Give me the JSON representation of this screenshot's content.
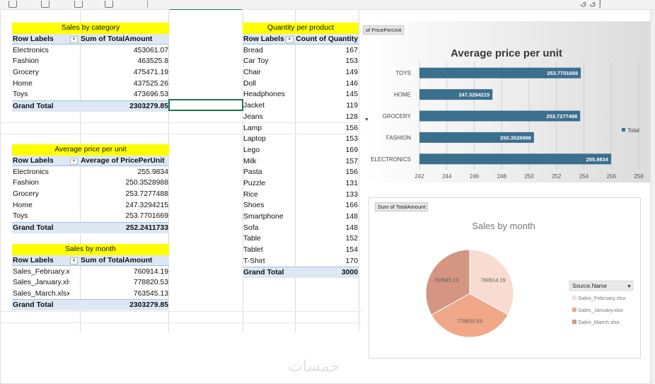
{
  "topbar": {
    "arabic_text": "إ ى ى"
  },
  "sales_by_category": {
    "title": "Sales by category",
    "col1": "Row Labels",
    "col2": "Sum of TotalAmount",
    "rows": [
      {
        "label": "Electronics",
        "value": "453061.07"
      },
      {
        "label": "Fashion",
        "value": "463525.8"
      },
      {
        "label": "Grocery",
        "value": "475471.19"
      },
      {
        "label": "Home",
        "value": "437525.26"
      },
      {
        "label": "Toys",
        "value": "473696.53"
      }
    ],
    "total_label": "Grand Total",
    "total_value": "2303279.85"
  },
  "avg_price": {
    "title": "Average price per unit",
    "col1": "Row Labels",
    "col2": "Average of PricePerUnit",
    "rows": [
      {
        "label": "Electronics",
        "value": "255.9834"
      },
      {
        "label": "Fashion",
        "value": "250.3528988"
      },
      {
        "label": "Grocery",
        "value": "253.7277488"
      },
      {
        "label": "Home",
        "value": "247.3294215"
      },
      {
        "label": "Toys",
        "value": "253.7701669"
      }
    ],
    "total_label": "Grand Total",
    "total_value": "252.2411733"
  },
  "sales_by_month": {
    "title": "Sales by month",
    "col1": "Row Labels",
    "col2": "Sum of TotalAmount",
    "rows": [
      {
        "label": "Sales_February.xlsx",
        "value": "760914.19"
      },
      {
        "label": "Sales_January.xlsx",
        "value": "778820.53"
      },
      {
        "label": "Sales_March.xlsx",
        "value": "763545.13"
      }
    ],
    "total_label": "Grand Total",
    "total_value": "2303279.85"
  },
  "qty_per_product": {
    "title": "Quantity per product",
    "col1": "Row Labels",
    "col2": "Count of Quantity",
    "rows": [
      {
        "label": "Bread",
        "value": "167"
      },
      {
        "label": "Car Toy",
        "value": "153"
      },
      {
        "label": "Chair",
        "value": "149"
      },
      {
        "label": "Doll",
        "value": "146"
      },
      {
        "label": "Headphones",
        "value": "145"
      },
      {
        "label": "Jacket",
        "value": "119"
      },
      {
        "label": "Jeans",
        "value": "128"
      },
      {
        "label": "Lamp",
        "value": "156"
      },
      {
        "label": "Laptop",
        "value": "153"
      },
      {
        "label": "Lego",
        "value": "169"
      },
      {
        "label": "Milk",
        "value": "157"
      },
      {
        "label": "Pasta",
        "value": "156"
      },
      {
        "label": "Puzzle",
        "value": "131"
      },
      {
        "label": "Rice",
        "value": "133"
      },
      {
        "label": "Shoes",
        "value": "166"
      },
      {
        "label": "Smartphone",
        "value": "148"
      },
      {
        "label": "Sofa",
        "value": "148"
      },
      {
        "label": "Table",
        "value": "152"
      },
      {
        "label": "Tablet",
        "value": "154"
      },
      {
        "label": "T-Shirt",
        "value": "170"
      }
    ],
    "total_label": "Grand Total",
    "total_value": "3000"
  },
  "chart_data": [
    {
      "type": "bar",
      "orientation": "horizontal",
      "title": "Average price per unit",
      "field_button": "of PricePerUnit",
      "categories": [
        "ELECTRONICS",
        "FASHION",
        "GROCERY",
        "HOME",
        "TOYS"
      ],
      "values": [
        255.9834,
        250.3528988,
        253.7277488,
        247.3294215,
        253.7701669
      ],
      "data_labels": [
        "255.9834",
        "250.3528988",
        "253.7277488",
        "247.3294215",
        "253.7701669"
      ],
      "xlim": [
        242,
        258
      ],
      "xticks": [
        "242",
        "244",
        "246",
        "248",
        "250",
        "252",
        "254",
        "256",
        "258"
      ],
      "legend": [
        "Total"
      ],
      "legend_position": "right",
      "grid": true,
      "bar_color": "#3b6f8e"
    },
    {
      "type": "pie",
      "title": "Sales by month",
      "field_button": "Sum of TotalAmount",
      "legend_title": "Source.Name",
      "legend_position": "right",
      "labels": [
        "Sales_February.xlsx",
        "Sales_January.xlsx",
        "Sales_March.xlsx"
      ],
      "values": [
        760914.19,
        778820.53,
        763545.13
      ],
      "data_labels": [
        "760914.19",
        "778820.53",
        "763545.13"
      ],
      "colors": [
        "#f8dcd2",
        "#f0a888",
        "#d49683"
      ]
    }
  ],
  "watermark": "خمسات"
}
